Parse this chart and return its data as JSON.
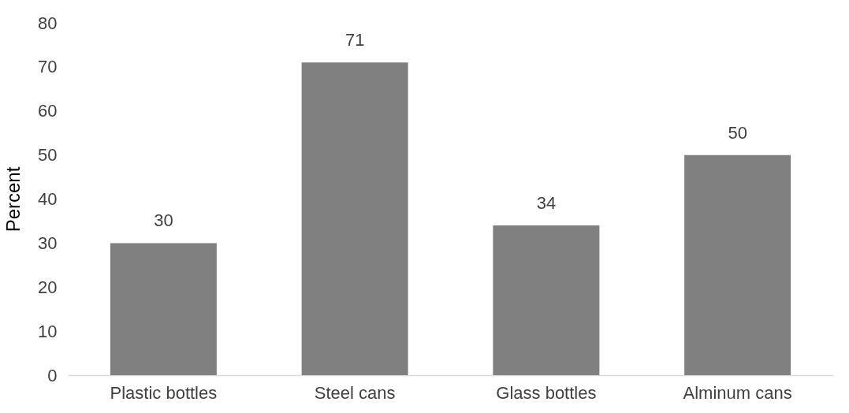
{
  "chart_data": {
    "type": "bar",
    "ylabel": "Percent",
    "categories": [
      "Plastic bottles",
      "Steel cans",
      "Glass bottles",
      "Alminum cans"
    ],
    "values": [
      30,
      71,
      34,
      50
    ],
    "color": "#808080",
    "ylim": [
      0,
      80
    ],
    "yticks": [
      0,
      10,
      20,
      30,
      40,
      50,
      60,
      70,
      80
    ],
    "grid": false,
    "data_labels": true
  }
}
